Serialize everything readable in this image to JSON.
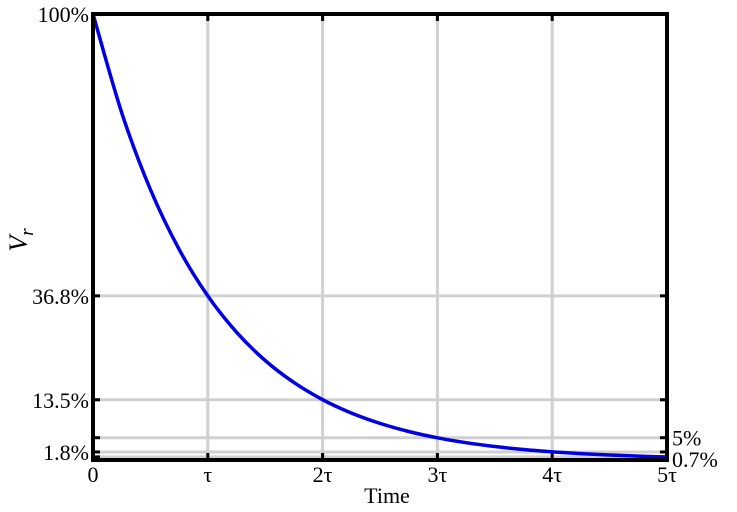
{
  "chart_data": {
    "type": "line",
    "xlabel": "Time",
    "ylabel": {
      "main": "V",
      "sub": "r"
    },
    "xlim": [
      0,
      5
    ],
    "ylim": [
      0,
      100
    ],
    "grid": true,
    "x_ticks": [
      {
        "value": 0,
        "label": "0"
      },
      {
        "value": 1,
        "label": "τ"
      },
      {
        "value": 2,
        "label": "2τ"
      },
      {
        "value": 3,
        "label": "3τ"
      },
      {
        "value": 4,
        "label": "4τ"
      },
      {
        "value": 5,
        "label": "5τ"
      }
    ],
    "y_ticks_left": [
      {
        "value": 100,
        "label": "100%"
      },
      {
        "value": 36.8,
        "label": "36.8%"
      },
      {
        "value": 13.5,
        "label": "13.5%"
      },
      {
        "value": 1.8,
        "label": "1.8%"
      }
    ],
    "y_ticks_right": [
      {
        "value": 5,
        "label": "5%"
      },
      {
        "value": 0.7,
        "label": "0.7%"
      }
    ],
    "series": [
      {
        "color": "#0000e0",
        "x": [
          0,
          0.25,
          0.5,
          0.75,
          1,
          1.25,
          1.5,
          1.75,
          2,
          2.25,
          2.5,
          2.75,
          3,
          3.25,
          3.5,
          3.75,
          4,
          4.25,
          4.5,
          4.75,
          5
        ],
        "y": [
          100,
          77.88,
          60.65,
          47.24,
          36.79,
          28.65,
          22.31,
          17.38,
          13.53,
          10.54,
          8.21,
          6.39,
          4.98,
          3.88,
          3.02,
          2.35,
          1.83,
          1.43,
          1.11,
          0.87,
          0.67
        ]
      }
    ],
    "colors": {
      "grid": "#d0d0d0",
      "axes": "#000000",
      "curve": "#0000e0"
    }
  }
}
